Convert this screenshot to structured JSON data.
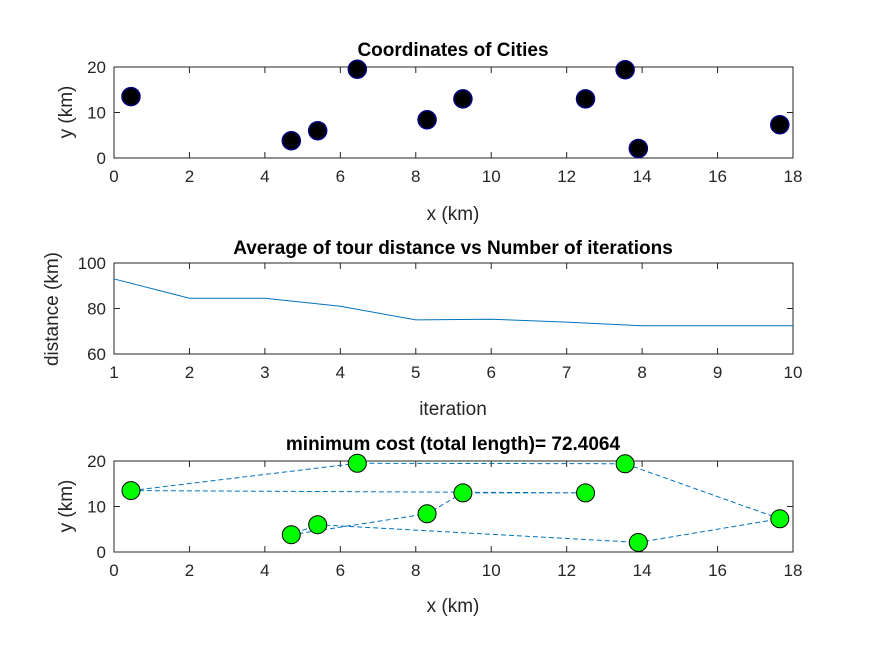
{
  "colors": {
    "axis": "#262626",
    "line": "#0072BD",
    "city_marker_fill": "#000000",
    "city_marker_edge": "#000080",
    "tour_marker_fill": "#00FF00",
    "tour_marker_edge": "#000000"
  },
  "chart_data": [
    {
      "type": "scatter",
      "title": "Coordinates of Cities",
      "xlabel": "x  (km)",
      "ylabel": "y  (km)",
      "xlim": [
        0,
        18
      ],
      "ylim": [
        0,
        20
      ],
      "xticks": [
        0,
        2,
        4,
        6,
        8,
        10,
        12,
        14,
        16,
        18
      ],
      "yticks": [
        0,
        10,
        20
      ],
      "grid": false,
      "series": [
        {
          "x": [
            0.45,
            4.7,
            5.4,
            6.45,
            8.3,
            9.25,
            12.5,
            13.55,
            13.9,
            17.65
          ],
          "y": [
            13.5,
            3.8,
            6.0,
            19.5,
            8.4,
            13.0,
            13.0,
            19.4,
            2.1,
            7.3
          ]
        }
      ]
    },
    {
      "type": "line",
      "title": "Average of tour distance vs Number of iterations",
      "xlabel": "iteration",
      "ylabel": "distance (km)",
      "xlim": [
        1,
        10
      ],
      "ylim": [
        60,
        100
      ],
      "xticks": [
        1,
        2,
        3,
        4,
        5,
        6,
        7,
        8,
        9,
        10
      ],
      "yticks": [
        60,
        80,
        100
      ],
      "grid": false,
      "series": [
        {
          "x": [
            1,
            2,
            3,
            4,
            5,
            6,
            7,
            8,
            9,
            10
          ],
          "y": [
            93.0,
            84.5,
            84.5,
            81.0,
            75.0,
            75.3,
            74.0,
            72.4,
            72.4,
            72.4
          ]
        }
      ]
    },
    {
      "type": "line",
      "title": "minimum cost (total length)= 72.4064",
      "xlabel": "x (km)",
      "ylabel": "y (km)",
      "xlim": [
        0,
        18
      ],
      "ylim": [
        0,
        20
      ],
      "xticks": [
        0,
        2,
        4,
        6,
        8,
        10,
        12,
        14,
        16,
        18
      ],
      "yticks": [
        0,
        10,
        20
      ],
      "grid": false,
      "line_style": "dashed",
      "series": [
        {
          "x": [
            0.45,
            6.45,
            13.55,
            17.65,
            13.9,
            5.4,
            4.7,
            8.3,
            9.25,
            12.5,
            0.45
          ],
          "y": [
            13.5,
            19.5,
            19.4,
            7.3,
            2.1,
            6.0,
            3.8,
            8.4,
            13.0,
            13.0,
            13.5
          ]
        }
      ]
    }
  ]
}
